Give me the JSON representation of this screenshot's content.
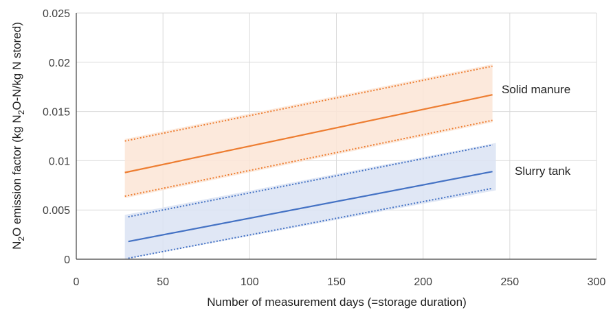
{
  "chart_data": {
    "type": "line",
    "xlabel": "Number of measurement days (=storage duration)",
    "ylabel": "N2O emission factor (kg N2O-N/kg N stored)",
    "ylabel_parts": {
      "a": "N",
      "a_sub": "2",
      "b": "O emission factor (kg N",
      "b_sub": "2",
      "c": "O-N/kg N stored)"
    },
    "xlim": [
      0,
      300
    ],
    "ylim": [
      0,
      0.025
    ],
    "x_ticks": [
      0,
      50,
      100,
      150,
      200,
      250,
      300
    ],
    "x_tick_labels": [
      "0",
      "50",
      "100",
      "150",
      "200",
      "250",
      "300"
    ],
    "y_ticks": [
      0,
      0.005,
      0.01,
      0.015,
      0.02,
      0.025
    ],
    "y_tick_labels": [
      "0",
      "0.005",
      "0.01",
      "0.015",
      "0.02",
      "0.025"
    ],
    "grid": true,
    "series": [
      {
        "name": "Solid manure",
        "color": "#ED7D31",
        "band_color": "#FBE5D6",
        "mean": {
          "x": [
            28,
            240
          ],
          "y": [
            0.0088,
            0.0167
          ]
        },
        "upper": {
          "x": [
            28,
            240
          ],
          "y": [
            0.012,
            0.0196
          ]
        },
        "lower": {
          "x": [
            28,
            240
          ],
          "y": [
            0.0064,
            0.0141
          ]
        },
        "band": {
          "x": [
            28,
            240
          ],
          "upper": [
            0.0122,
            0.0198
          ],
          "lower": [
            0.0062,
            0.0139
          ]
        }
      },
      {
        "name": "Slurry tank",
        "color": "#4472C4",
        "band_color": "#DAE3F3",
        "mean": {
          "x": [
            30,
            240
          ],
          "y": [
            0.0018,
            0.0089
          ]
        },
        "upper": {
          "x": [
            30,
            240
          ],
          "y": [
            0.0043,
            0.0116
          ]
        },
        "lower": {
          "x": [
            30,
            240
          ],
          "y": [
            0.0001,
            0.0072
          ]
        },
        "band": {
          "x": [
            28,
            242
          ],
          "upper": [
            0.0045,
            0.0118
          ],
          "lower": [
            0.0,
            0.007
          ]
        }
      }
    ]
  }
}
